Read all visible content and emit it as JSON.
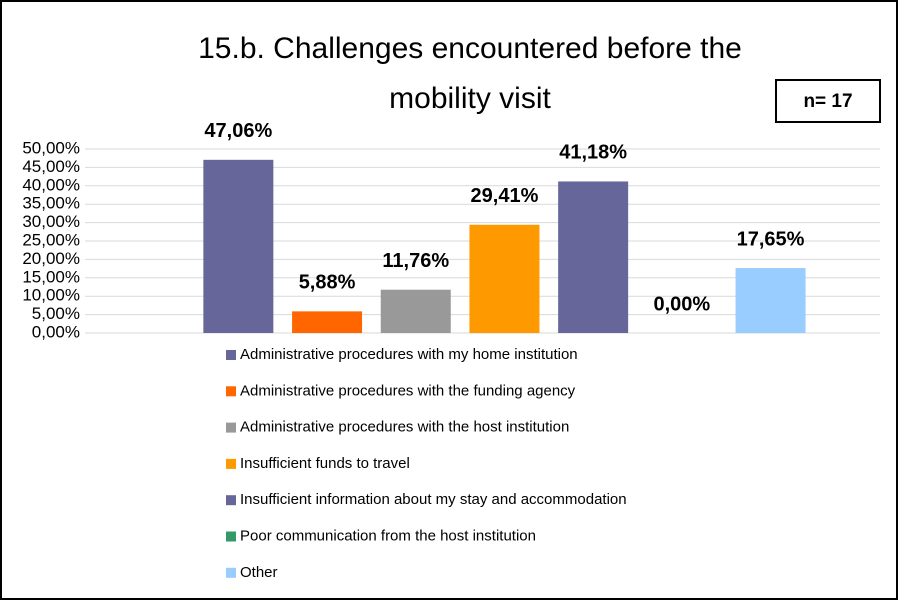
{
  "chart_data": {
    "type": "bar",
    "title": "15.b. Challenges encountered before the mobility visit",
    "annotation": "n= 17",
    "series": [
      {
        "name": "Administrative procedures with my home institution",
        "color": "#66669a",
        "values": [
          47.06
        ],
        "value_labels": [
          "47,06%"
        ]
      },
      {
        "name": "Administrative procedures with the funding agency",
        "color": "#ff6600",
        "values": [
          5.88
        ],
        "value_labels": [
          "5,88%"
        ]
      },
      {
        "name": "Administrative procedures with the host institution",
        "color": "#999999",
        "values": [
          11.76
        ],
        "value_labels": [
          "11,76%"
        ]
      },
      {
        "name": "Insufficient funds to travel",
        "color": "#ff9900",
        "values": [
          29.41
        ],
        "value_labels": [
          "29,41%"
        ]
      },
      {
        "name": "Insufficient information about my stay and accommodation",
        "color": "#66669a",
        "values": [
          41.18
        ],
        "value_labels": [
          "41,18%"
        ]
      },
      {
        "name": "Poor communication from the host institution",
        "color": "#339966",
        "values": [
          0
        ],
        "value_labels": [
          "0,00%"
        ]
      },
      {
        "name": "Other",
        "color": "#99ccff",
        "values": [
          17.65
        ],
        "value_labels": [
          "17,65%"
        ]
      }
    ],
    "ylim": [
      0,
      50
    ],
    "yticks": [
      {
        "value": 0,
        "label": "0,00%"
      },
      {
        "value": 5,
        "label": "5,00%"
      },
      {
        "value": 10,
        "label": "10,00%"
      },
      {
        "value": 15,
        "label": "15,00%"
      },
      {
        "value": 20,
        "label": "20,00%"
      },
      {
        "value": 25,
        "label": "25,00%"
      },
      {
        "value": 30,
        "label": "30,00%"
      },
      {
        "value": 35,
        "label": "35,00%"
      },
      {
        "value": 40,
        "label": "40,00%"
      },
      {
        "value": 45,
        "label": "45,00%"
      },
      {
        "value": 50,
        "label": "50,00%"
      }
    ],
    "grid": true
  }
}
